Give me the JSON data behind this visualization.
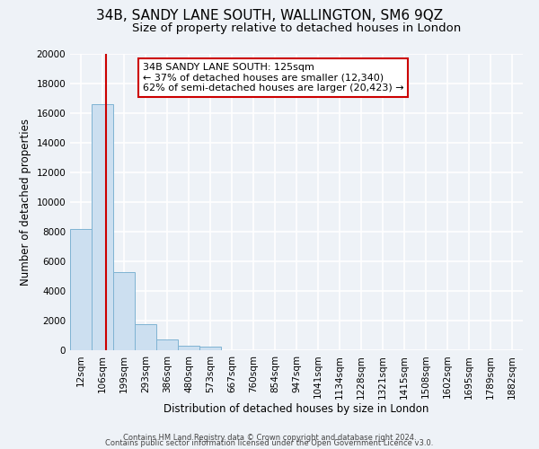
{
  "title": "34B, SANDY LANE SOUTH, WALLINGTON, SM6 9QZ",
  "subtitle": "Size of property relative to detached houses in London",
  "xlabel": "Distribution of detached houses by size in London",
  "ylabel": "Number of detached properties",
  "bar_labels": [
    "12sqm",
    "106sqm",
    "199sqm",
    "293sqm",
    "386sqm",
    "480sqm",
    "573sqm",
    "667sqm",
    "760sqm",
    "854sqm",
    "947sqm",
    "1041sqm",
    "1134sqm",
    "1228sqm",
    "1321sqm",
    "1415sqm",
    "1508sqm",
    "1602sqm",
    "1695sqm",
    "1789sqm",
    "1882sqm"
  ],
  "bar_heights": [
    8200,
    16600,
    5300,
    1750,
    750,
    300,
    250,
    0,
    0,
    0,
    0,
    0,
    0,
    0,
    0,
    0,
    0,
    0,
    0,
    0,
    0
  ],
  "bar_color": "#ccdff0",
  "bar_edge_color": "#7fb3d3",
  "ylim": [
    0,
    20000
  ],
  "yticks": [
    0,
    2000,
    4000,
    6000,
    8000,
    10000,
    12000,
    14000,
    16000,
    18000,
    20000
  ],
  "property_line_x": 1.18,
  "annotation_title": "34B SANDY LANE SOUTH: 125sqm",
  "annotation_line1": "← 37% of detached houses are smaller (12,340)",
  "annotation_line2": "62% of semi-detached houses are larger (20,423) →",
  "annotation_box_color": "#ffffff",
  "annotation_box_edge": "#cc0000",
  "vline_color": "#cc0000",
  "footer1": "Contains HM Land Registry data © Crown copyright and database right 2024.",
  "footer2": "Contains public sector information licensed under the Open Government Licence v3.0.",
  "background_color": "#eef2f7",
  "plot_bg_color": "#eef2f7",
  "grid_color": "#ffffff",
  "title_fontsize": 11,
  "subtitle_fontsize": 9.5,
  "xlabel_fontsize": 8.5,
  "ylabel_fontsize": 8.5,
  "tick_fontsize": 7.5,
  "annotation_fontsize": 8,
  "footer_fontsize": 6
}
